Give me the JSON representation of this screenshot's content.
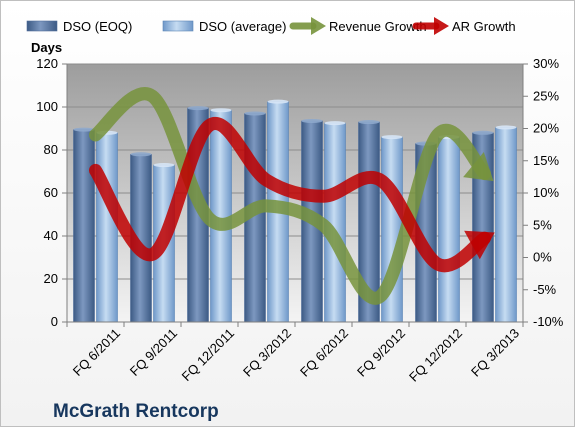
{
  "chart_data": {
    "type": "bar",
    "title": "McGrath Rentcorp",
    "ylabel": "Days",
    "ylim": [
      0,
      120
    ],
    "y2lim": [
      -10,
      30
    ],
    "y_ticks": [
      "0",
      "20",
      "40",
      "60",
      "80",
      "100",
      "120"
    ],
    "y2_ticks": [
      "-10%",
      "-5%",
      "0%",
      "5%",
      "10%",
      "15%",
      "20%",
      "25%",
      "30%"
    ],
    "categories": [
      "FQ 6/2011",
      "FQ 9/2011",
      "FQ 12/2011",
      "FQ 3/2012",
      "FQ 6/2012",
      "FQ 9/2012",
      "FQ 12/2012",
      "FQ 3/2013"
    ],
    "series": [
      {
        "name": "DSO (EOQ)",
        "type": "bar",
        "axis": "left",
        "values": [
          89.5,
          78,
          99.5,
          97,
          93.5,
          93,
          83,
          88
        ]
      },
      {
        "name": "DSO (average)",
        "type": "bar",
        "axis": "left",
        "values": [
          88,
          73,
          98.5,
          102.5,
          92.5,
          86,
          86,
          90.5
        ]
      },
      {
        "name": "Revenue Growth",
        "type": "line",
        "axis": "right",
        "unit": "%",
        "values": [
          19,
          25,
          6,
          8,
          5,
          -6,
          19,
          13
        ]
      },
      {
        "name": "AR Growth",
        "type": "line",
        "axis": "right",
        "unit": "%",
        "values": [
          13.5,
          0.5,
          20.5,
          12,
          9.5,
          12,
          -1,
          3
        ]
      }
    ],
    "grid": true,
    "legend_position": "top",
    "colors": {
      "bar_eoq": "#4f6d9a",
      "bar_avg": "#8db3e2",
      "revenue": "#77933c",
      "ar": "#c00000",
      "plot_bg": "#c0c0c0",
      "title": "#17375e"
    }
  }
}
